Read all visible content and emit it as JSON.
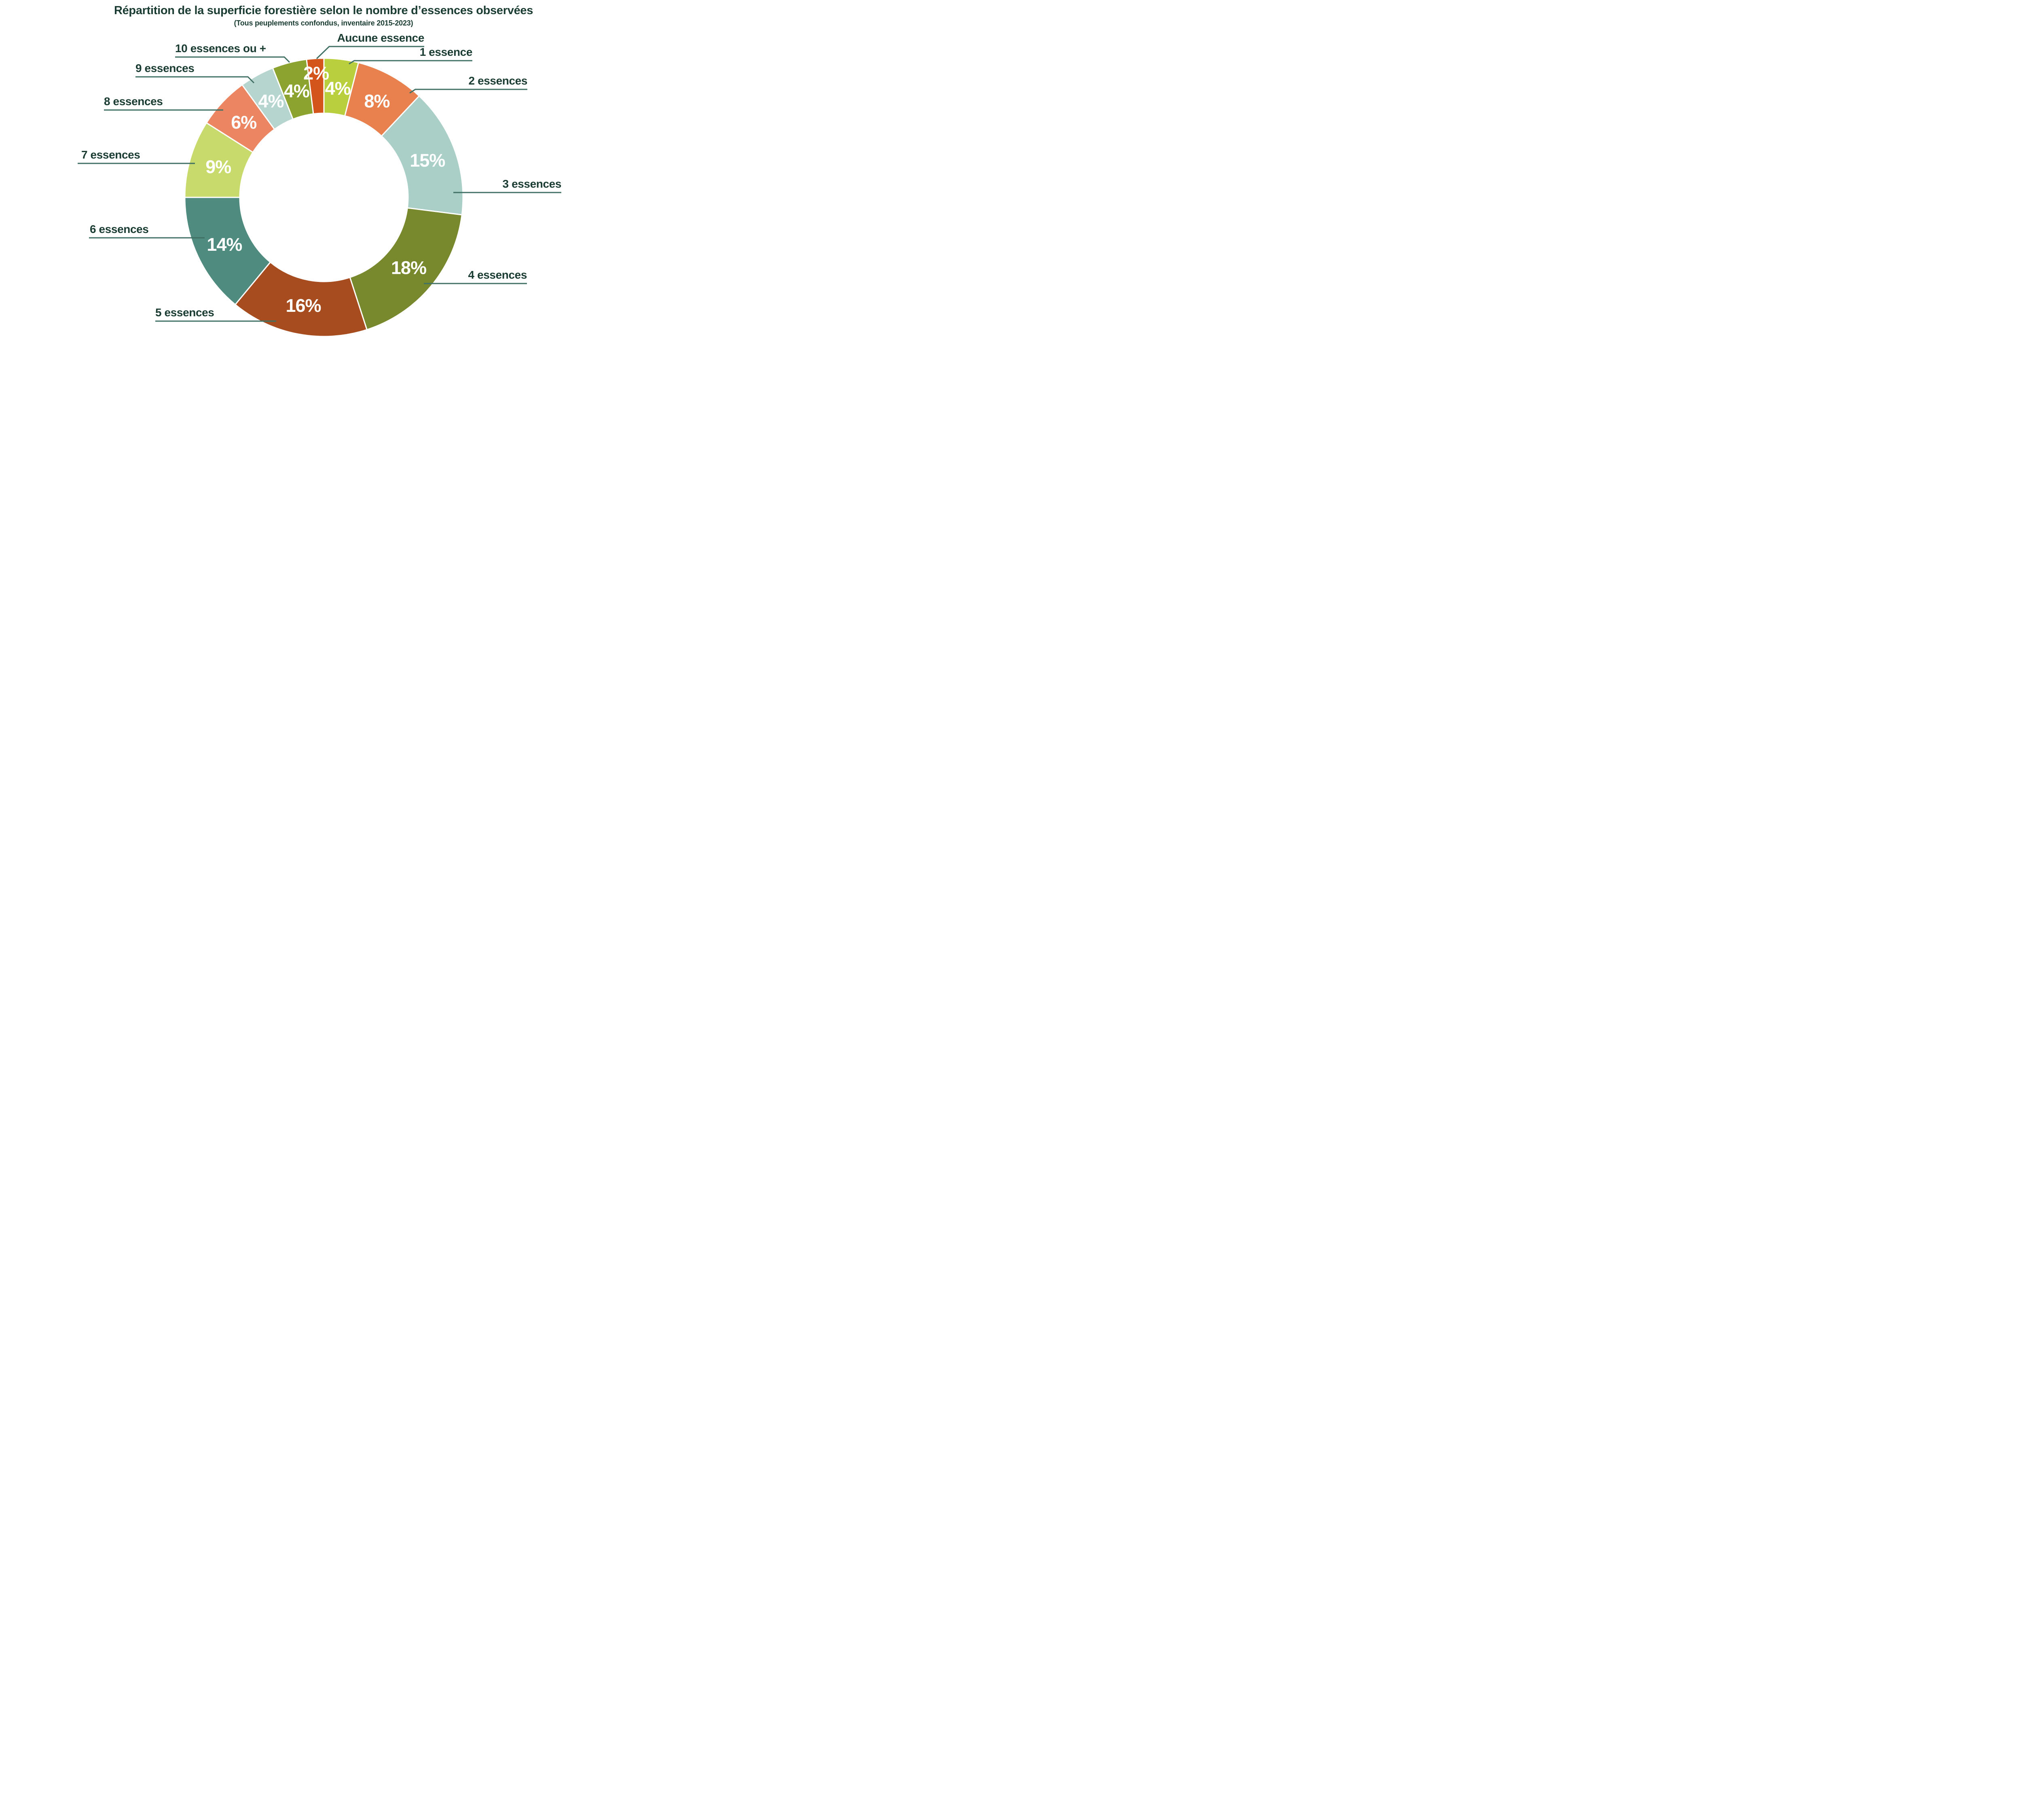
{
  "title": "Répartition de la superficie forestière selon le nombre d’essences observées",
  "subtitle": "(Tous peuplements confondus, inventaire 2015-2023)",
  "chart_data": {
    "type": "pie",
    "style": "donut",
    "unit": "%",
    "start_offset_deg": -7.2,
    "clockwise": true,
    "inner_radius_ratio": 0.6,
    "legend_position": "around-chart-callouts",
    "slices": [
      {
        "label": "Aucune essence",
        "value": 2,
        "pct_label": "2%",
        "color": "#d4551c"
      },
      {
        "label": "1 essence",
        "value": 4,
        "pct_label": "4%",
        "color": "#b9cf3e"
      },
      {
        "label": "2 essences",
        "value": 8,
        "pct_label": "8%",
        "color": "#e8814e"
      },
      {
        "label": "3 essences",
        "value": 15,
        "pct_label": "15%",
        "color": "#a9cfc7"
      },
      {
        "label": "4 essences",
        "value": 18,
        "pct_label": "18%",
        "color": "#77892c"
      },
      {
        "label": "5 essences",
        "value": 16,
        "pct_label": "16%",
        "color": "#a74c1e"
      },
      {
        "label": "6 essences",
        "value": 14,
        "pct_label": "14%",
        "color": "#4f8c7f"
      },
      {
        "label": "7 essences",
        "value": 9,
        "pct_label": "9%",
        "color": "#c9da6c"
      },
      {
        "label": "8 essences",
        "value": 6,
        "pct_label": "6%",
        "color": "#ec8662"
      },
      {
        "label": "9 essences",
        "value": 4,
        "pct_label": "4%",
        "color": "#b7d5cf"
      },
      {
        "label": "10 essences ou +",
        "value": 4,
        "pct_label": "4%",
        "color": "#8ca32f"
      }
    ],
    "colors": {
      "background": "#ffffff",
      "label_text": "#1a3c32",
      "leader_line": "#3f7063",
      "pct_text": "#ffffff",
      "slice_gap_stroke": "#ffffff"
    }
  }
}
